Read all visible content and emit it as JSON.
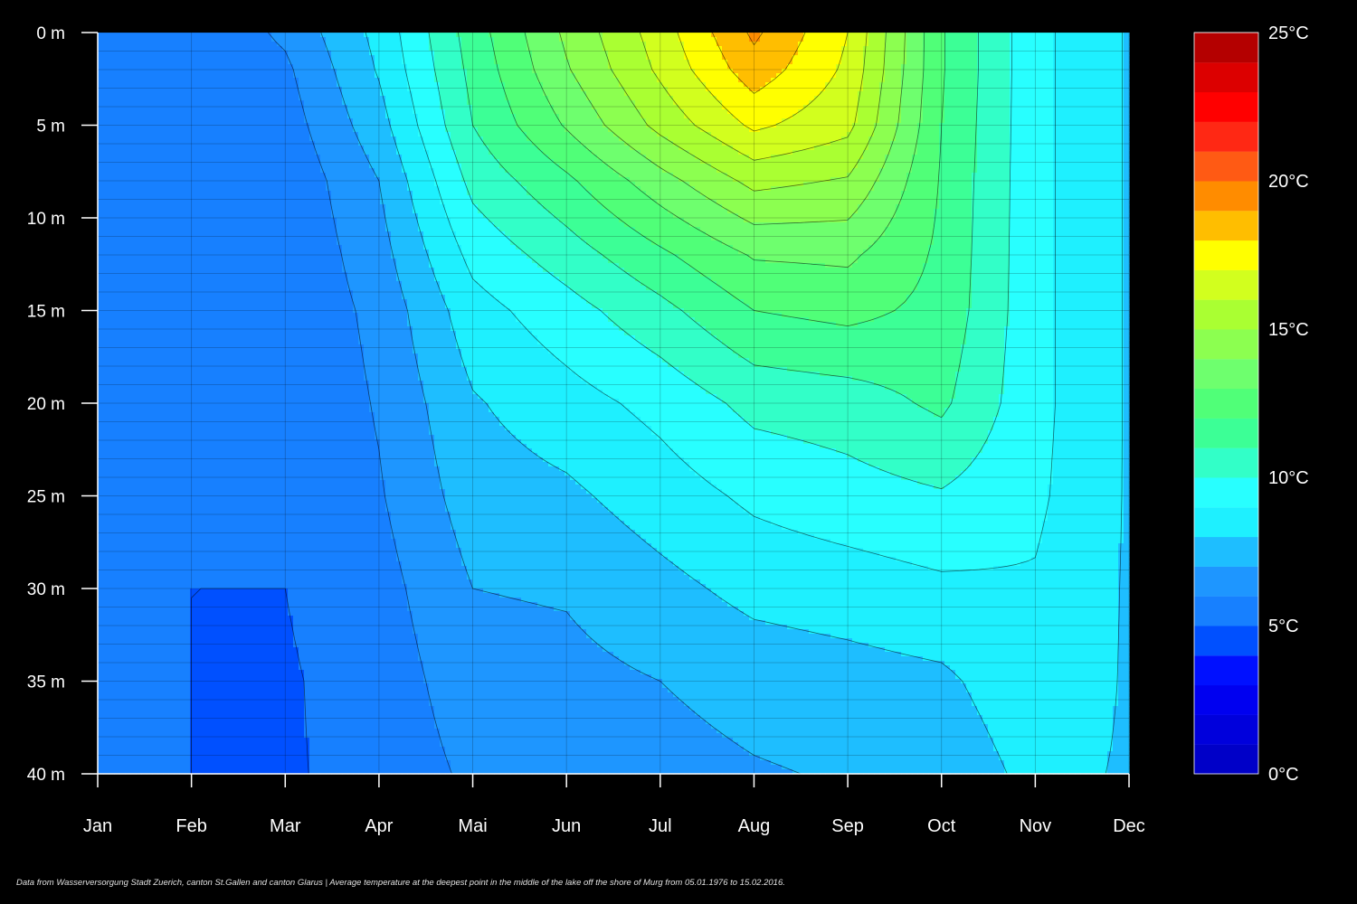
{
  "chart_data": {
    "type": "heatmap",
    "title": "",
    "caption": "Data from Wasserversorgung Stadt Zuerich, canton St.Gallen and canton Glarus | Average temperature at the deepest point in the middle of the lake off the shore of Murg from 05.01.1976 to 15.02.2016.",
    "x_labels": [
      "Jan",
      "Feb",
      "Mar",
      "Apr",
      "Mai",
      "Jun",
      "Jul",
      "Aug",
      "Sep",
      "Oct",
      "Nov",
      "Dec"
    ],
    "y_labels": [
      "0 m",
      "5 m",
      "10 m",
      "15 m",
      "20 m",
      "25 m",
      "30 m",
      "35 m",
      "40 m"
    ],
    "depth_ticks": [
      0,
      5,
      10,
      15,
      20,
      25,
      30,
      35,
      40
    ],
    "month_ticks": [
      0,
      1,
      2,
      3,
      4,
      5,
      6,
      7,
      8,
      9,
      10,
      11
    ],
    "depth_range": [
      0,
      40
    ],
    "month_range": [
      0,
      11
    ],
    "colorbar": {
      "range": [
        0,
        25
      ],
      "step": 1,
      "labels": [
        "0°C",
        "5°C",
        "10°C",
        "15°C",
        "20°C",
        "25°C"
      ],
      "label_values": [
        0,
        5,
        10,
        15,
        20,
        25
      ],
      "colors": [
        "#0000c8",
        "#0000dc",
        "#0000f0",
        "#0010ff",
        "#0050ff",
        "#1780ff",
        "#1e96ff",
        "#1ebeff",
        "#1ef0ff",
        "#28ffff",
        "#32ffc8",
        "#3cff96",
        "#50ff78",
        "#6eff6e",
        "#8cff50",
        "#aaff32",
        "#d2ff1e",
        "#ffff00",
        "#ffbe00",
        "#ff8c00",
        "#ff5a14",
        "#ff2814",
        "#ff0000",
        "#dc0000",
        "#b40000"
      ]
    },
    "depths": [
      0,
      2,
      5,
      8,
      12,
      15,
      20,
      25,
      30,
      35,
      40
    ],
    "temperatures": [
      [
        5.3,
        5.3,
        5.3,
        5.3,
        5.3,
        5.3,
        5.3,
        5.2,
        5.1,
        5.0,
        5.0
      ],
      [
        5.1,
        5.1,
        5.1,
        5.1,
        5.1,
        5.1,
        5.1,
        5.1,
        5.0,
        5.0,
        5.0
      ],
      [
        6.2,
        5.8,
        5.5,
        5.2,
        5.1,
        5.1,
        5.0,
        5.0,
        5.0,
        4.9,
        4.9
      ],
      [
        8.3,
        8.1,
        7.6,
        7.0,
        6.6,
        6.3,
        6.1,
        5.9,
        5.6,
        5.4,
        5.3
      ],
      [
        11.5,
        11.3,
        11.0,
        10.3,
        9.3,
        8.6,
        7.9,
        7.5,
        7.0,
        6.6,
        6.2
      ],
      [
        14.2,
        13.9,
        13.1,
        11.8,
        10.5,
        9.6,
        8.6,
        7.8,
        7.1,
        6.7,
        6.4
      ],
      [
        16.5,
        16.2,
        15.3,
        13.6,
        11.8,
        10.7,
        9.3,
        8.5,
        7.7,
        7.0,
        6.6
      ],
      [
        19.2,
        18.6,
        17.2,
        15.3,
        13.1,
        12.0,
        10.3,
        9.2,
        8.3,
        7.4,
        6.9
      ],
      [
        17.0,
        16.8,
        16.3,
        14.9,
        13.2,
        12.3,
        10.5,
        9.6,
        8.5,
        7.6,
        7.1
      ],
      [
        12.1,
        12.1,
        12.0,
        11.9,
        11.8,
        11.7,
        11.2,
        9.9,
        8.8,
        7.8,
        7.3
      ],
      [
        9.3,
        9.3,
        9.3,
        9.3,
        9.3,
        9.3,
        9.3,
        9.2,
        8.9,
        8.7,
        8.3
      ],
      [
        7.9,
        7.9,
        7.9,
        7.9,
        7.9,
        7.9,
        7.9,
        7.9,
        7.9,
        7.9,
        7.9
      ]
    ]
  }
}
